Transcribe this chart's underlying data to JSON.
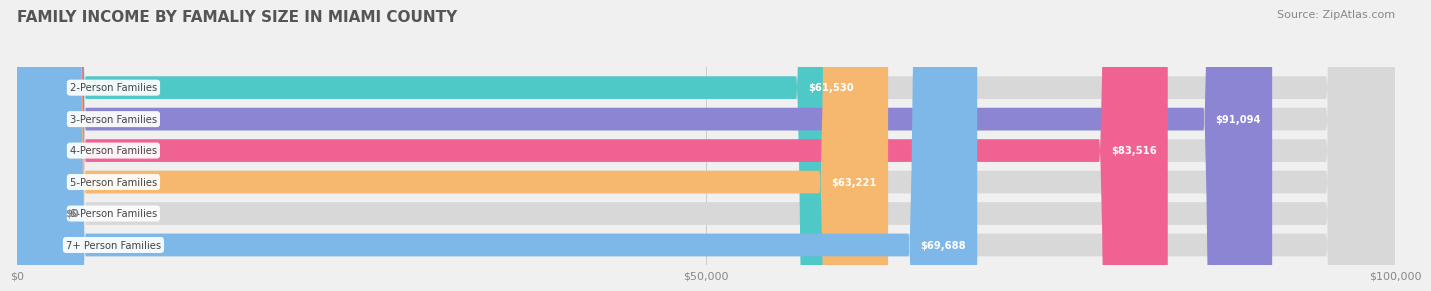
{
  "title": "FAMILY INCOME BY FAMALIY SIZE IN MIAMI COUNTY",
  "source": "Source: ZipAtlas.com",
  "categories": [
    "2-Person Families",
    "3-Person Families",
    "4-Person Families",
    "5-Person Families",
    "6-Person Families",
    "7+ Person Families"
  ],
  "values": [
    61530,
    91094,
    83516,
    63221,
    0,
    69688
  ],
  "bar_colors": [
    "#4fc8c8",
    "#8b85d4",
    "#f06292",
    "#f5b86e",
    "#f48fb1",
    "#7eb8e8"
  ],
  "label_colors": [
    "#ffffff",
    "#ffffff",
    "#ffffff",
    "#ffffff",
    "#888888",
    "#ffffff"
  ],
  "xlim": [
    0,
    100000
  ],
  "xticks": [
    0,
    50000,
    100000
  ],
  "xticklabels": [
    "$0",
    "$50,000",
    "$100,000"
  ],
  "background_color": "#f0f0f0",
  "title_fontsize": 11,
  "source_fontsize": 8,
  "bar_height": 0.72,
  "fig_width": 14.06,
  "fig_height": 3.05
}
